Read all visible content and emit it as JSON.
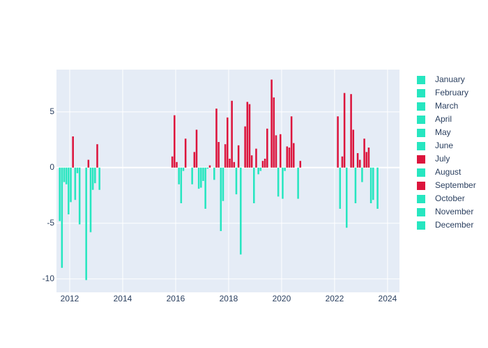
{
  "chart_data": {
    "type": "bar",
    "xlim": [
      2011.5,
      2024.45
    ],
    "xticks": [
      2012,
      2014,
      2016,
      2018,
      2020,
      2022,
      2024
    ],
    "ylim": [
      -11.2,
      8.8
    ],
    "yticks": [
      -10,
      -5,
      0,
      5
    ],
    "grid": true,
    "positive_color": "#dc143c",
    "negative_color": "#26e6c0",
    "series": [
      {
        "name": "January",
        "color": "#26e6c0",
        "x": [
          2012,
          2013,
          2016,
          2017,
          2018,
          2019,
          2020,
          2023
        ],
        "values": [
          -3.1,
          2.1,
          0.5,
          -1.2,
          0.8,
          1.7,
          -2.8,
          -1.3
        ]
      },
      {
        "name": "February",
        "color": "#26e6c0",
        "x": [
          2012,
          2013,
          2016,
          2017,
          2018,
          2019,
          2020,
          2022,
          2023
        ],
        "values": [
          2.8,
          -2.0,
          -1.5,
          -3.7,
          6.0,
          -0.6,
          -0.3,
          4.6,
          2.6
        ]
      },
      {
        "name": "March",
        "color": "#26e6c0",
        "x": [
          2012,
          2016,
          2017,
          2018,
          2019,
          2020,
          2022,
          2023
        ],
        "values": [
          -2.9,
          -3.2,
          -0.1,
          0.5,
          -0.3,
          1.9,
          -3.7,
          1.4
        ]
      },
      {
        "name": "April",
        "color": "#26e6c0",
        "x": [
          2012,
          2016,
          2017,
          2018,
          2019,
          2020,
          2022,
          2023
        ],
        "values": [
          -0.5,
          -0.3,
          0.2,
          -2.4,
          0.6,
          1.8,
          1.0,
          1.8
        ]
      },
      {
        "name": "May",
        "color": "#26e6c0",
        "x": [
          2012,
          2016,
          2018,
          2019,
          2020,
          2022,
          2023
        ],
        "values": [
          -5.1,
          2.6,
          2.0,
          0.8,
          4.6,
          6.7,
          -3.2
        ]
      },
      {
        "name": "June",
        "color": "#26e6c0",
        "x": [
          2017,
          2018,
          2019,
          2020,
          2022,
          2023
        ],
        "values": [
          -1.1,
          -7.8,
          3.5,
          2.2,
          -5.4,
          -2.9
        ]
      },
      {
        "name": "July",
        "color": "#dc143c",
        "x": [
          2017
        ],
        "values": [
          5.3
        ]
      },
      {
        "name": "August",
        "color": "#26e6c0",
        "x": [
          2011,
          2012,
          2016,
          2017,
          2018,
          2019,
          2020,
          2022,
          2023
        ],
        "values": [
          -4.8,
          -10.1,
          -1.5,
          2.3,
          3.7,
          7.9,
          -2.8,
          6.6,
          -3.7
        ]
      },
      {
        "name": "September",
        "color": "#dc143c",
        "x": [
          2011,
          2012,
          2016,
          2017,
          2018,
          2019,
          2020,
          2022
        ],
        "values": [
          -9.0,
          0.7,
          1.4,
          -5.7,
          5.9,
          6.3,
          0.6,
          3.4
        ]
      },
      {
        "name": "October",
        "color": "#26e6c0",
        "x": [
          2011,
          2012,
          2016,
          2017,
          2018,
          2019,
          2022
        ],
        "values": [
          -1.3,
          -5.8,
          3.4,
          -3.0,
          5.7,
          2.9,
          -3.2
        ]
      },
      {
        "name": "November",
        "color": "#26e6c0",
        "x": [
          2011,
          2012,
          2015,
          2016,
          2017,
          2018,
          2019,
          2022
        ],
        "values": [
          -1.5,
          -2.0,
          1.0,
          -1.9,
          2.1,
          1.1,
          -2.6,
          1.3
        ]
      },
      {
        "name": "December",
        "color": "#26e6c0",
        "x": [
          2011,
          2012,
          2015,
          2016,
          2017,
          2018,
          2019,
          2022
        ],
        "values": [
          -4.2,
          -1.4,
          4.7,
          -1.8,
          4.5,
          -3.2,
          3.0,
          0.7
        ]
      }
    ]
  }
}
